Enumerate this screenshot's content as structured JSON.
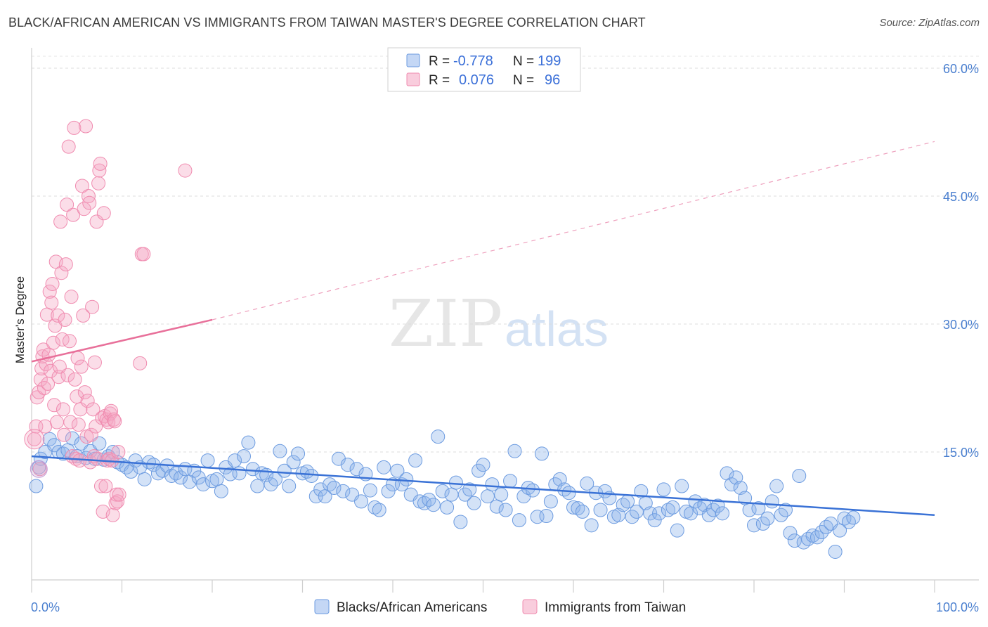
{
  "header": {
    "title": "BLACK/AFRICAN AMERICAN VS IMMIGRANTS FROM TAIWAN MASTER'S DEGREE CORRELATION CHART",
    "source": "Source: ZipAtlas.com"
  },
  "watermark": {
    "zip": "ZIP",
    "atlas": "atlas"
  },
  "legend": {
    "r_label": "R =",
    "n_label": "N =",
    "rows": [
      {
        "r": "-0.778",
        "n": "199",
        "color": "#6c9be0"
      },
      {
        "r": "0.076",
        "n": "96",
        "color": "#f08cb0"
      }
    ]
  },
  "bottom_legend": [
    {
      "label": "Blacks/African Americans",
      "color": "#6c9be0"
    },
    {
      "label": "Immigrants from Taiwan",
      "color": "#f08cb0"
    }
  ],
  "chart_data": {
    "type": "scatter",
    "title": "BLACK/AFRICAN AMERICAN VS IMMIGRANTS FROM TAIWAN MASTER'S DEGREE CORRELATION CHART",
    "xlabel": "",
    "ylabel": "Master's Degree",
    "xlim": [
      0,
      100
    ],
    "ylim": [
      0,
      60
    ],
    "x_tick_labels": [
      "0.0%",
      "100.0%"
    ],
    "y_ticks": [
      15,
      30,
      45,
      60
    ],
    "y_tick_labels": [
      "15.0%",
      "30.0%",
      "45.0%",
      "60.0%"
    ],
    "grid": true,
    "legend_position": "top-center",
    "series": [
      {
        "name": "Blacks/African Americans",
        "color": "#6c9be0",
        "r": -0.778,
        "n": 199,
        "trend": {
          "x": [
            0,
            100
          ],
          "y": [
            14.5,
            7.6
          ],
          "style": "solid"
        },
        "points": [
          [
            0.5,
            11.0
          ],
          [
            0.8,
            13.2
          ],
          [
            1.0,
            14.2
          ],
          [
            1.5,
            15.0
          ],
          [
            2.0,
            16.5
          ],
          [
            2.5,
            15.8
          ],
          [
            3.0,
            15.0
          ],
          [
            3.5,
            14.8
          ],
          [
            4.0,
            15.2
          ],
          [
            4.5,
            16.6
          ],
          [
            5.0,
            14.5
          ],
          [
            5.5,
            16.0
          ],
          [
            6.0,
            14.3
          ],
          [
            6.5,
            15.1
          ],
          [
            7.0,
            14.2
          ],
          [
            7.5,
            16.0
          ],
          [
            8.0,
            14.1
          ],
          [
            8.5,
            14.5
          ],
          [
            9.0,
            15.0
          ],
          [
            9.5,
            13.8
          ],
          [
            10.0,
            13.5
          ],
          [
            10.5,
            13.2
          ],
          [
            11.0,
            12.7
          ],
          [
            11.5,
            14.0
          ],
          [
            12.0,
            13.2
          ],
          [
            12.5,
            11.8
          ],
          [
            13.0,
            13.8
          ],
          [
            13.5,
            13.5
          ],
          [
            14.0,
            12.5
          ],
          [
            14.5,
            12.8
          ],
          [
            15.0,
            13.4
          ],
          [
            15.5,
            12.2
          ],
          [
            16.0,
            12.5
          ],
          [
            16.5,
            12.0
          ],
          [
            17.0,
            13.0
          ],
          [
            17.5,
            11.5
          ],
          [
            18.0,
            12.8
          ],
          [
            18.5,
            12.0
          ],
          [
            19.0,
            11.2
          ],
          [
            19.5,
            14.0
          ],
          [
            20.0,
            11.6
          ],
          [
            20.5,
            11.8
          ],
          [
            21.0,
            10.4
          ],
          [
            21.5,
            13.2
          ],
          [
            22.0,
            12.4
          ],
          [
            22.5,
            14.0
          ],
          [
            23.0,
            12.5
          ],
          [
            23.5,
            14.5
          ],
          [
            24.0,
            16.1
          ],
          [
            24.5,
            13.0
          ],
          [
            25.0,
            11.0
          ],
          [
            25.5,
            12.5
          ],
          [
            26.0,
            12.3
          ],
          [
            26.5,
            11.2
          ],
          [
            27.0,
            11.8
          ],
          [
            27.5,
            15.1
          ],
          [
            28.0,
            12.8
          ],
          [
            28.5,
            11.0
          ],
          [
            29.0,
            13.8
          ],
          [
            29.5,
            14.8
          ],
          [
            30.0,
            12.5
          ],
          [
            30.5,
            12.7
          ],
          [
            31.0,
            12.2
          ],
          [
            31.5,
            9.8
          ],
          [
            32.0,
            10.6
          ],
          [
            32.5,
            9.8
          ],
          [
            33.0,
            11.2
          ],
          [
            33.5,
            10.8
          ],
          [
            34.0,
            14.2
          ],
          [
            34.5,
            10.4
          ],
          [
            35.0,
            13.5
          ],
          [
            35.5,
            10.0
          ],
          [
            36.0,
            13.0
          ],
          [
            36.5,
            9.2
          ],
          [
            37.0,
            12.4
          ],
          [
            37.5,
            10.5
          ],
          [
            38.0,
            8.5
          ],
          [
            38.5,
            8.2
          ],
          [
            39.0,
            13.2
          ],
          [
            39.5,
            10.4
          ],
          [
            40.0,
            11.2
          ],
          [
            40.5,
            12.8
          ],
          [
            41.0,
            11.2
          ],
          [
            41.5,
            11.8
          ],
          [
            42.0,
            10.0
          ],
          [
            42.5,
            14.0
          ],
          [
            43.0,
            9.2
          ],
          [
            43.5,
            9.0
          ],
          [
            44.0,
            9.4
          ],
          [
            44.5,
            8.8
          ],
          [
            45.0,
            16.8
          ],
          [
            45.5,
            10.4
          ],
          [
            46.0,
            8.5
          ],
          [
            46.5,
            10.0
          ],
          [
            47.0,
            11.4
          ],
          [
            47.5,
            6.8
          ],
          [
            48.0,
            10.0
          ],
          [
            48.5,
            10.6
          ],
          [
            49.0,
            9.0
          ],
          [
            49.5,
            12.8
          ],
          [
            50.0,
            13.5
          ],
          [
            50.5,
            9.8
          ],
          [
            51.0,
            11.2
          ],
          [
            51.5,
            8.6
          ],
          [
            52.0,
            10.0
          ],
          [
            52.5,
            8.2
          ],
          [
            53.0,
            11.6
          ],
          [
            53.5,
            15.1
          ],
          [
            54.0,
            7.0
          ],
          [
            54.5,
            9.8
          ],
          [
            55.0,
            10.8
          ],
          [
            55.5,
            10.5
          ],
          [
            56.0,
            7.4
          ],
          [
            56.5,
            14.8
          ],
          [
            57.0,
            7.5
          ],
          [
            57.5,
            9.2
          ],
          [
            58.0,
            11.2
          ],
          [
            58.5,
            11.8
          ],
          [
            59.0,
            10.6
          ],
          [
            59.5,
            10.2
          ],
          [
            60.0,
            8.5
          ],
          [
            60.5,
            8.4
          ],
          [
            61.0,
            8.0
          ],
          [
            61.5,
            11.3
          ],
          [
            62.0,
            6.4
          ],
          [
            62.5,
            10.2
          ],
          [
            63.0,
            8.2
          ],
          [
            63.5,
            10.4
          ],
          [
            64.0,
            9.6
          ],
          [
            64.5,
            7.4
          ],
          [
            65.0,
            7.6
          ],
          [
            65.5,
            8.8
          ],
          [
            66.0,
            9.2
          ],
          [
            66.5,
            7.4
          ],
          [
            67.0,
            8.0
          ],
          [
            67.5,
            10.4
          ],
          [
            68.0,
            9.0
          ],
          [
            68.5,
            7.8
          ],
          [
            69.0,
            7.0
          ],
          [
            69.5,
            7.8
          ],
          [
            70.0,
            10.6
          ],
          [
            70.5,
            8.2
          ],
          [
            71.0,
            8.5
          ],
          [
            71.5,
            5.8
          ],
          [
            72.0,
            11.0
          ],
          [
            72.5,
            8.0
          ],
          [
            73.0,
            7.8
          ],
          [
            73.5,
            9.2
          ],
          [
            74.0,
            8.4
          ],
          [
            74.5,
            8.8
          ],
          [
            75.0,
            7.6
          ],
          [
            75.5,
            8.2
          ],
          [
            76.0,
            8.7
          ],
          [
            76.5,
            7.8
          ],
          [
            77.0,
            12.5
          ],
          [
            77.5,
            11.2
          ],
          [
            78.0,
            12.0
          ],
          [
            78.5,
            10.8
          ],
          [
            79.0,
            9.6
          ],
          [
            79.5,
            8.2
          ],
          [
            80.0,
            6.4
          ],
          [
            80.5,
            8.4
          ],
          [
            81.0,
            6.6
          ],
          [
            81.5,
            7.2
          ],
          [
            82.0,
            9.2
          ],
          [
            82.5,
            11.0
          ],
          [
            83.0,
            7.6
          ],
          [
            83.5,
            8.2
          ],
          [
            84.0,
            5.5
          ],
          [
            84.5,
            4.6
          ],
          [
            85.0,
            12.2
          ],
          [
            85.5,
            4.4
          ],
          [
            86.0,
            4.8
          ],
          [
            86.5,
            5.2
          ],
          [
            87.0,
            5.0
          ],
          [
            87.5,
            5.6
          ],
          [
            88.0,
            6.2
          ],
          [
            88.5,
            6.6
          ],
          [
            89.0,
            3.3
          ],
          [
            89.5,
            5.8
          ],
          [
            90.0,
            7.2
          ],
          [
            90.5,
            6.8
          ],
          [
            91.0,
            7.3
          ]
        ]
      },
      {
        "name": "Immigrants from Taiwan",
        "color": "#f08cb0",
        "r": 0.076,
        "n": 96,
        "trend": {
          "x": [
            0,
            20
          ],
          "y": [
            25.6,
            30.5
          ],
          "style": "solid",
          "extended": {
            "x": [
              20,
              100
            ],
            "y": [
              30.5,
              51.4
            ],
            "style": "dashed"
          }
        },
        "points": [
          [
            0.3,
            16.5
          ],
          [
            0.5,
            18.0
          ],
          [
            0.6,
            21.4
          ],
          [
            0.8,
            22.0
          ],
          [
            0.9,
            13.0
          ],
          [
            1.0,
            23.5
          ],
          [
            1.1,
            24.8
          ],
          [
            1.2,
            26.2
          ],
          [
            1.3,
            27.0
          ],
          [
            1.4,
            22.5
          ],
          [
            1.5,
            18.0
          ],
          [
            1.6,
            25.3
          ],
          [
            1.7,
            31.1
          ],
          [
            1.8,
            23.0
          ],
          [
            1.9,
            26.4
          ],
          [
            2.0,
            33.8
          ],
          [
            2.1,
            24.5
          ],
          [
            2.2,
            32.5
          ],
          [
            2.3,
            34.7
          ],
          [
            2.4,
            27.8
          ],
          [
            2.5,
            20.5
          ],
          [
            2.6,
            29.8
          ],
          [
            2.7,
            37.3
          ],
          [
            2.8,
            18.5
          ],
          [
            2.9,
            31.0
          ],
          [
            3.0,
            23.8
          ],
          [
            3.1,
            25.0
          ],
          [
            3.2,
            42.0
          ],
          [
            3.3,
            36.0
          ],
          [
            3.4,
            28.2
          ],
          [
            3.5,
            20.0
          ],
          [
            3.6,
            17.0
          ],
          [
            3.7,
            30.5
          ],
          [
            3.8,
            37.0
          ],
          [
            3.9,
            44.0
          ],
          [
            4.0,
            24.0
          ],
          [
            4.1,
            50.8
          ],
          [
            4.2,
            28.0
          ],
          [
            4.3,
            18.5
          ],
          [
            4.4,
            33.2
          ],
          [
            4.5,
            14.5
          ],
          [
            4.6,
            42.8
          ],
          [
            4.7,
            53.0
          ],
          [
            4.8,
            23.5
          ],
          [
            4.9,
            14.2
          ],
          [
            5.0,
            21.5
          ],
          [
            5.1,
            26.0
          ],
          [
            5.2,
            18.2
          ],
          [
            5.3,
            14.0
          ],
          [
            5.4,
            20.0
          ],
          [
            5.5,
            25.0
          ],
          [
            5.6,
            46.2
          ],
          [
            5.7,
            31.0
          ],
          [
            5.8,
            43.5
          ],
          [
            5.9,
            22.0
          ],
          [
            6.0,
            53.2
          ],
          [
            6.1,
            16.8
          ],
          [
            6.2,
            21.0
          ],
          [
            6.3,
            45.0
          ],
          [
            6.4,
            44.2
          ],
          [
            6.5,
            13.8
          ],
          [
            6.6,
            17.0
          ],
          [
            6.7,
            32.0
          ],
          [
            6.8,
            20.0
          ],
          [
            6.9,
            14.5
          ],
          [
            7.0,
            25.5
          ],
          [
            7.1,
            18.0
          ],
          [
            7.2,
            42.0
          ],
          [
            7.3,
            14.2
          ],
          [
            7.4,
            46.5
          ],
          [
            7.5,
            48.0
          ],
          [
            7.6,
            48.8
          ],
          [
            7.7,
            11.0
          ],
          [
            7.8,
            19.0
          ],
          [
            7.9,
            8.0
          ],
          [
            8.0,
            43.0
          ],
          [
            8.1,
            19.2
          ],
          [
            8.2,
            11.0
          ],
          [
            8.3,
            18.8
          ],
          [
            8.4,
            14.0
          ],
          [
            8.5,
            18.5
          ],
          [
            8.6,
            14.2
          ],
          [
            8.7,
            19.5
          ],
          [
            8.8,
            19.8
          ],
          [
            8.9,
            14.0
          ],
          [
            9.0,
            7.6
          ],
          [
            9.1,
            18.8
          ],
          [
            9.2,
            18.6
          ],
          [
            9.3,
            9.0
          ],
          [
            9.4,
            10.0
          ],
          [
            9.5,
            9.2
          ],
          [
            9.6,
            15.0
          ],
          [
            9.7,
            10.0
          ],
          [
            12.0,
            25.4
          ],
          [
            12.2,
            38.2
          ],
          [
            12.4,
            38.2
          ],
          [
            17.0,
            48.0
          ]
        ]
      }
    ]
  }
}
